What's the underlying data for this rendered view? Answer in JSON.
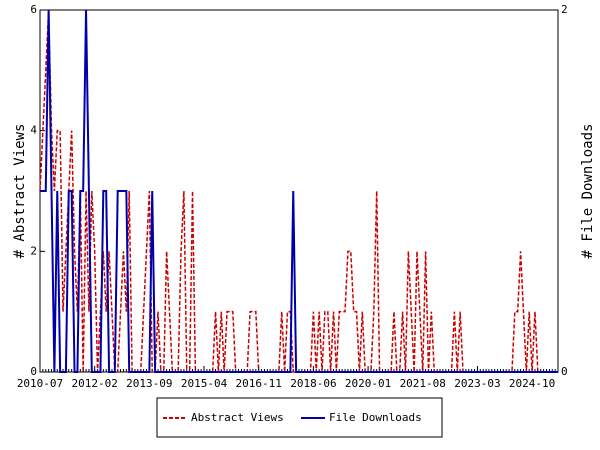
{
  "chart_data": {
    "type": "line",
    "ylabel": "# Abstract Views",
    "y2label": "# File Downloads",
    "x": [
      "2010-07",
      "2010-08",
      "2010-09",
      "2010-10",
      "2010-11",
      "2010-12",
      "2011-01",
      "2011-02",
      "2011-03",
      "2011-04",
      "2011-05",
      "2011-06",
      "2011-07",
      "2011-08",
      "2011-09",
      "2011-10",
      "2011-11",
      "2011-12",
      "2012-01",
      "2012-02",
      "2012-03",
      "2012-04",
      "2012-05",
      "2012-06",
      "2012-07",
      "2012-08",
      "2012-09",
      "2012-10",
      "2012-11",
      "2012-12",
      "2013-01",
      "2013-02",
      "2013-03",
      "2013-04",
      "2013-05",
      "2013-06",
      "2013-07",
      "2013-08",
      "2013-09",
      "2013-10",
      "2013-11",
      "2013-12",
      "2014-01",
      "2014-02",
      "2014-03",
      "2014-04",
      "2014-05",
      "2014-06",
      "2014-07",
      "2014-08",
      "2014-09",
      "2014-10",
      "2014-11",
      "2014-12",
      "2015-01",
      "2015-02",
      "2015-03",
      "2015-04",
      "2015-05",
      "2015-06",
      "2015-07",
      "2015-08",
      "2015-09",
      "2015-10",
      "2015-11",
      "2015-12",
      "2016-01",
      "2016-02",
      "2016-03",
      "2016-04",
      "2016-05",
      "2016-06",
      "2016-07",
      "2016-08",
      "2016-09",
      "2016-10",
      "2016-11",
      "2016-12",
      "2017-01",
      "2017-02",
      "2017-03",
      "2017-04",
      "2017-05",
      "2017-06",
      "2017-07",
      "2017-08",
      "2017-09",
      "2017-10",
      "2017-11",
      "2017-12",
      "2018-01",
      "2018-02",
      "2018-03",
      "2018-04",
      "2018-05",
      "2018-06",
      "2018-07",
      "2018-08",
      "2018-09",
      "2018-10",
      "2018-11",
      "2018-12",
      "2019-01",
      "2019-02",
      "2019-03",
      "2019-04",
      "2019-05",
      "2019-06",
      "2019-07",
      "2019-08",
      "2019-09",
      "2019-10",
      "2019-11",
      "2019-12",
      "2020-01",
      "2020-02",
      "2020-03",
      "2020-04",
      "2020-05",
      "2020-06",
      "2020-07",
      "2020-08",
      "2020-09",
      "2020-10",
      "2020-11",
      "2020-12",
      "2021-01",
      "2021-02",
      "2021-03",
      "2021-04",
      "2021-05",
      "2021-06",
      "2021-07",
      "2021-08",
      "2021-09",
      "2021-10",
      "2021-11",
      "2021-12",
      "2022-01",
      "2022-02",
      "2022-03",
      "2022-04",
      "2022-05",
      "2022-06",
      "2022-07",
      "2022-08",
      "2022-09",
      "2022-10",
      "2022-11",
      "2022-12",
      "2023-01",
      "2023-02",
      "2023-03",
      "2023-04",
      "2023-05",
      "2023-06",
      "2023-07",
      "2023-08",
      "2023-09",
      "2023-10",
      "2023-11",
      "2023-12",
      "2024-01",
      "2024-02",
      "2024-03",
      "2024-04",
      "2024-05",
      "2024-06",
      "2024-07",
      "2024-08",
      "2024-09",
      "2024-10",
      "2024-11",
      "2024-12",
      "2025-01",
      "2025-02",
      "2025-03",
      "2025-04",
      "2025-05",
      "2025-06",
      "2025-07"
    ],
    "xticks": [
      "2010-07",
      "2012-02",
      "2013-09",
      "2015-04",
      "2016-11",
      "2018-06",
      "2020-01",
      "2021-08",
      "2023-03",
      "2024-10"
    ],
    "ylim": [
      0,
      6
    ],
    "yticks": [
      0,
      2,
      4,
      6
    ],
    "y2lim": [
      0,
      2
    ],
    "y2ticks": [
      0,
      2
    ],
    "legend": "bottom",
    "series": [
      {
        "name": "Abstract Views",
        "color": "#cc0000",
        "values": [
          3,
          4,
          5,
          6,
          4,
          3,
          4,
          4,
          1,
          2,
          3,
          4,
          2,
          1,
          3,
          0,
          3,
          1,
          3,
          2,
          0,
          1,
          2,
          1,
          2,
          1,
          0,
          0,
          1,
          2,
          1,
          3,
          0,
          0,
          0,
          0,
          1,
          2,
          3,
          0,
          0,
          1,
          0,
          0,
          2,
          1,
          0,
          0,
          0,
          2,
          3,
          0,
          0,
          3,
          0,
          0,
          0,
          0,
          0,
          0,
          0,
          1,
          0,
          1,
          0,
          1,
          1,
          1,
          0,
          0,
          0,
          0,
          0,
          1,
          1,
          1,
          0,
          0,
          0,
          0,
          0,
          0,
          0,
          0,
          1,
          0,
          1,
          1,
          0,
          0,
          0,
          0,
          0,
          0,
          0,
          1,
          0,
          1,
          0,
          1,
          1,
          0,
          1,
          0,
          1,
          1,
          1,
          2,
          2,
          1,
          1,
          0,
          1,
          0,
          0,
          0,
          1,
          3,
          0,
          0,
          0,
          0,
          0,
          1,
          0,
          0,
          1,
          0,
          2,
          1,
          0,
          2,
          1,
          0,
          2,
          0,
          1,
          0,
          0,
          0,
          0,
          0,
          0,
          0,
          1,
          0,
          1,
          0,
          0,
          0,
          0,
          0,
          0,
          0,
          0,
          0,
          0,
          0,
          0,
          0,
          0,
          0,
          0,
          0,
          0,
          1,
          1,
          2,
          1,
          0,
          1,
          0,
          1,
          0,
          0,
          0,
          0,
          0,
          0,
          0,
          0
        ]
      },
      {
        "name": "File Downloads",
        "color": "#0000aa",
        "axis": "y2",
        "values": [
          1,
          1,
          1,
          2,
          1,
          0,
          1,
          0,
          0,
          0,
          1,
          1,
          0,
          0,
          1,
          1,
          2,
          1,
          0,
          0,
          0,
          0,
          1,
          1,
          0,
          0,
          0,
          1,
          1,
          1,
          1,
          0,
          0,
          0,
          0,
          0,
          0,
          0,
          0,
          1,
          0,
          0,
          0,
          0,
          0,
          0,
          0,
          0,
          0,
          0,
          0,
          0,
          0,
          0,
          0,
          0,
          0,
          0,
          0,
          0,
          0,
          0,
          0,
          0,
          0,
          0,
          0,
          0,
          0,
          0,
          0,
          0,
          0,
          0,
          0,
          0,
          0,
          0,
          0,
          0,
          0,
          0,
          0,
          0,
          0,
          0,
          0,
          0,
          1,
          0,
          0,
          0,
          0,
          0,
          0,
          0,
          0,
          0,
          0,
          0,
          0,
          0,
          0,
          0,
          0,
          0,
          0,
          0,
          0,
          0,
          0,
          0,
          0,
          0,
          0,
          0,
          0,
          0,
          0,
          0,
          0,
          0,
          0,
          0,
          0,
          0,
          0,
          0,
          0,
          0,
          0,
          0,
          0,
          0,
          0,
          0,
          0,
          0,
          0,
          0,
          0,
          0,
          0,
          0,
          0,
          0,
          0,
          0,
          0,
          0,
          0,
          0,
          0,
          0,
          0,
          0,
          0,
          0,
          0,
          0,
          0,
          0,
          0,
          0,
          0,
          0,
          0,
          0,
          0,
          0,
          0,
          0,
          0,
          0,
          0,
          0,
          0,
          0,
          0,
          0,
          0
        ]
      }
    ]
  }
}
